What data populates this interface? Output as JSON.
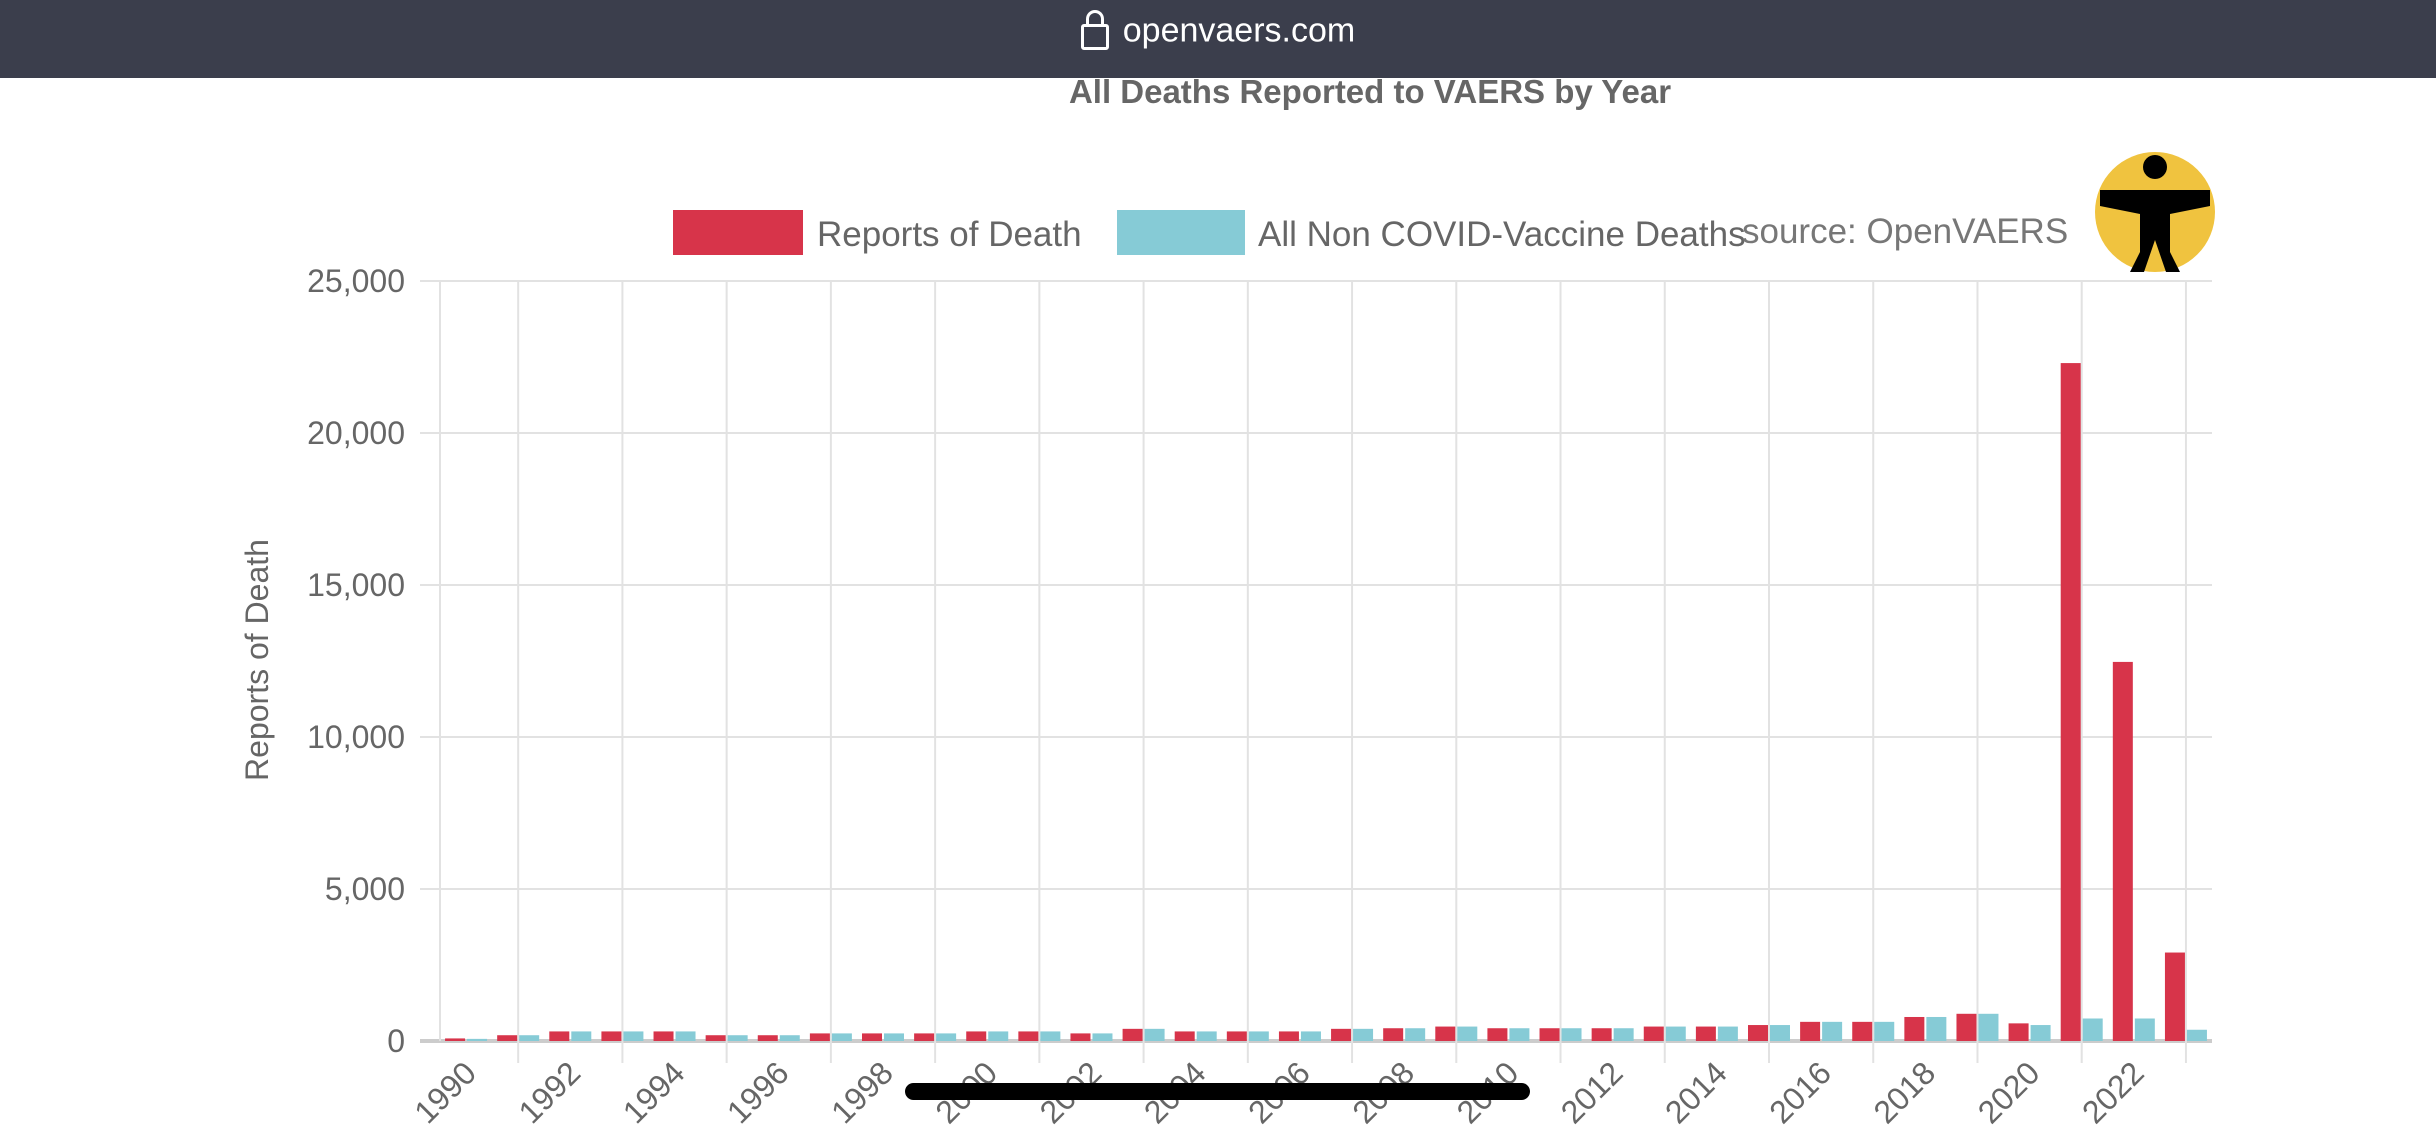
{
  "browser": {
    "url": "openvaers.com",
    "lock_icon": "lock-icon"
  },
  "accessibility_icon": "accessibility-icon",
  "source_label": "source: OpenVAERS",
  "chart_data": {
    "type": "bar",
    "title": "All Deaths Reported to VAERS by Year",
    "xlabel": "",
    "ylabel": "Reports of Death",
    "ylim": [
      0,
      25000
    ],
    "yticks": [
      "0",
      "5,000",
      "10,000",
      "15,000",
      "20,000",
      "25,000"
    ],
    "grid": true,
    "legend_position": "top",
    "categories": [
      "1990",
      "1991",
      "1992",
      "1993",
      "1994",
      "1995",
      "1996",
      "1997",
      "1998",
      "1999",
      "2000",
      "2001",
      "2002",
      "2003",
      "2004",
      "2005",
      "2006",
      "2007",
      "2008",
      "2009",
      "2010",
      "2011",
      "2012",
      "2013",
      "2014",
      "2015",
      "2016",
      "2017",
      "2018",
      "2019",
      "2020",
      "2021",
      "2022",
      "2023"
    ],
    "xtick_labels": [
      "1990",
      "1992",
      "1994",
      "1996",
      "1998",
      "2000",
      "2002",
      "2004",
      "2006",
      "2008",
      "2010",
      "2012",
      "2014",
      "2016",
      "2018",
      "2020",
      "2022"
    ],
    "series": [
      {
        "name": "Reports of Death",
        "color": "#d7344a",
        "values": [
          85,
          190,
          315,
          315,
          315,
          190,
          190,
          250,
          250,
          250,
          315,
          315,
          250,
          400,
          315,
          315,
          315,
          400,
          420,
          475,
          420,
          420,
          420,
          475,
          475,
          525,
          630,
          630,
          790,
          895,
          580,
          22300,
          12470,
          2910
        ]
      },
      {
        "name": "All Non COVID-Vaccine Deaths",
        "color": "#86cbd6",
        "values": [
          70,
          190,
          315,
          315,
          315,
          190,
          190,
          250,
          250,
          250,
          315,
          315,
          250,
          400,
          315,
          315,
          315,
          400,
          420,
          475,
          420,
          420,
          420,
          475,
          475,
          525,
          630,
          630,
          790,
          895,
          525,
          740,
          740,
          370
        ]
      }
    ]
  }
}
